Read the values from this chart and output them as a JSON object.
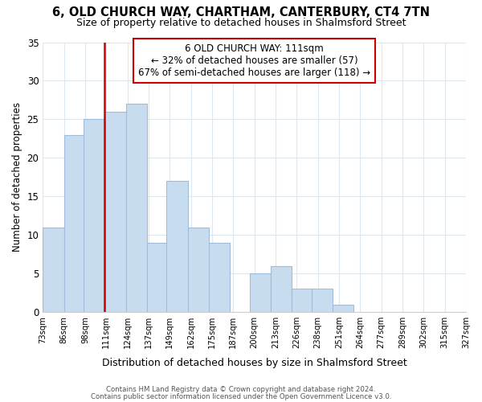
{
  "title": "6, OLD CHURCH WAY, CHARTHAM, CANTERBURY, CT4 7TN",
  "subtitle": "Size of property relative to detached houses in Shalmsford Street",
  "xlabel": "Distribution of detached houses by size in Shalmsford Street",
  "ylabel": "Number of detached properties",
  "footnote1": "Contains HM Land Registry data © Crown copyright and database right 2024.",
  "footnote2": "Contains public sector information licensed under the Open Government Licence v3.0.",
  "bar_left_edges": [
    73,
    86,
    98,
    111,
    124,
    137,
    149,
    162,
    175,
    187,
    200,
    213,
    226,
    238,
    251,
    264,
    277,
    289,
    302,
    315
  ],
  "bar_heights": [
    11,
    23,
    25,
    26,
    27,
    9,
    17,
    11,
    9,
    0,
    5,
    6,
    3,
    3,
    1,
    0,
    0,
    0,
    0,
    0
  ],
  "bin_width": 13,
  "bar_color": "#c8dcf0",
  "bar_edgecolor": "#a0bcd8",
  "reference_line_x": 111,
  "reference_line_color": "#cc0000",
  "annotation_line1": "6 OLD CHURCH WAY: 111sqm",
  "annotation_line2": "← 32% of detached houses are smaller (57)",
  "annotation_line3": "67% of semi-detached houses are larger (118) →",
  "ylim": [
    0,
    35
  ],
  "yticks": [
    0,
    5,
    10,
    15,
    20,
    25,
    30,
    35
  ],
  "tick_labels": [
    "73sqm",
    "86sqm",
    "98sqm",
    "111sqm",
    "124sqm",
    "137sqm",
    "149sqm",
    "162sqm",
    "175sqm",
    "187sqm",
    "200sqm",
    "213sqm",
    "226sqm",
    "238sqm",
    "251sqm",
    "264sqm",
    "277sqm",
    "289sqm",
    "302sqm",
    "315sqm",
    "327sqm"
  ],
  "background_color": "#ffffff",
  "grid_color": "#dde8f0"
}
